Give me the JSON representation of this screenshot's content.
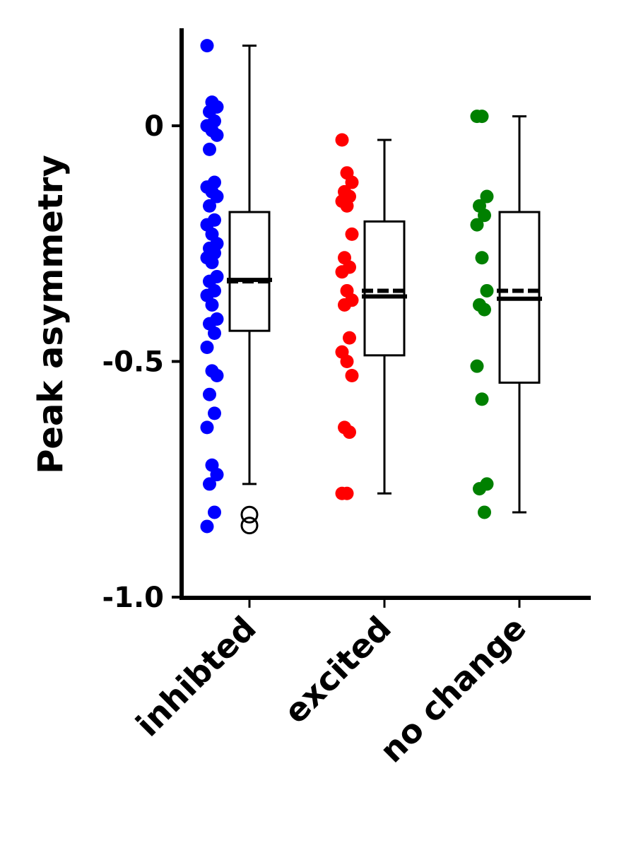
{
  "chart_data": {
    "type": "box",
    "title": "",
    "xlabel": "",
    "ylabel": "Peak asymmetry",
    "ylim": [
      -1.0,
      0.2
    ],
    "yticks": [
      {
        "value": 0,
        "label": "0"
      },
      {
        "value": -0.5,
        "label": "-0.5"
      },
      {
        "value": -1.0,
        "label": "-1.0"
      }
    ],
    "grid": false,
    "legend": "none",
    "categories": [
      "inhibted",
      "excited",
      "no change"
    ],
    "series": [
      {
        "category": "inhibted",
        "color": "#0000ff",
        "points": [
          0.17,
          0.05,
          0.04,
          0.03,
          0.01,
          0.0,
          -0.01,
          -0.02,
          -0.05,
          -0.12,
          -0.13,
          -0.14,
          -0.15,
          -0.17,
          -0.2,
          -0.21,
          -0.23,
          -0.25,
          -0.26,
          -0.27,
          -0.28,
          -0.29,
          -0.32,
          -0.33,
          -0.35,
          -0.36,
          -0.38,
          -0.41,
          -0.42,
          -0.44,
          -0.47,
          -0.52,
          -0.53,
          -0.57,
          -0.61,
          -0.64,
          -0.72,
          -0.74,
          -0.76,
          -0.82,
          -0.85
        ],
        "box": {
          "q1": -0.435,
          "median": -0.327,
          "mean": -0.33,
          "q3": -0.183,
          "whisker_low": -0.76,
          "whisker_high": 0.17
        },
        "outliers": [
          -0.825,
          -0.848
        ]
      },
      {
        "category": "excited",
        "color": "#ff0000",
        "points": [
          -0.03,
          -0.1,
          -0.12,
          -0.14,
          -0.15,
          -0.16,
          -0.17,
          -0.23,
          -0.28,
          -0.3,
          -0.31,
          -0.35,
          -0.37,
          -0.38,
          -0.45,
          -0.48,
          -0.5,
          -0.53,
          -0.64,
          -0.65,
          -0.78,
          -0.78
        ],
        "box": {
          "q1": -0.487,
          "median": -0.362,
          "mean": -0.35,
          "q3": -0.203,
          "whisker_low": -0.78,
          "whisker_high": -0.03
        },
        "outliers": []
      },
      {
        "category": "no change",
        "color": "#008000",
        "points": [
          0.02,
          0.02,
          -0.15,
          -0.17,
          -0.19,
          -0.21,
          -0.28,
          -0.35,
          -0.38,
          -0.39,
          -0.51,
          -0.58,
          -0.76,
          -0.77,
          -0.82
        ],
        "box": {
          "q1": -0.545,
          "median": -0.367,
          "mean": -0.35,
          "q3": -0.183,
          "whisker_low": -0.82,
          "whisker_high": 0.02
        },
        "outliers": []
      }
    ]
  }
}
